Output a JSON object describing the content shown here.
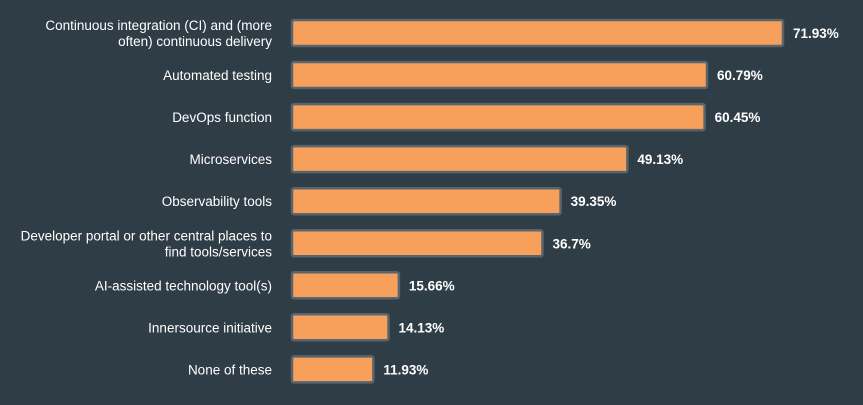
{
  "chart_data": {
    "type": "bar",
    "orientation": "horizontal",
    "title": "",
    "xlabel": "",
    "ylabel": "",
    "categories": [
      [
        "Continuous integration (CI) and (more",
        "often) continuous delivery"
      ],
      [
        "Automated testing"
      ],
      [
        "DevOps function"
      ],
      [
        "Microservices"
      ],
      [
        "Observability tools"
      ],
      [
        "Developer portal or other central places to",
        "find tools/services"
      ],
      [
        "AI-assisted technology tool(s)"
      ],
      [
        "Innersource initiative"
      ],
      [
        "None of these"
      ]
    ],
    "values": [
      71.93,
      60.79,
      60.45,
      49.13,
      39.35,
      36.7,
      15.66,
      14.13,
      11.93
    ],
    "value_labels": [
      "71.93%",
      "60.79%",
      "60.45%",
      "49.13%",
      "39.35%",
      "36.7%",
      "15.66%",
      "14.13%",
      "11.93%"
    ],
    "xlim": [
      0,
      71.93
    ],
    "grid": false,
    "colors": {
      "background": "#2f3d46",
      "bar_fill": "#f6a05b",
      "bar_stroke": "#59646c",
      "text": "#ffffff"
    }
  }
}
